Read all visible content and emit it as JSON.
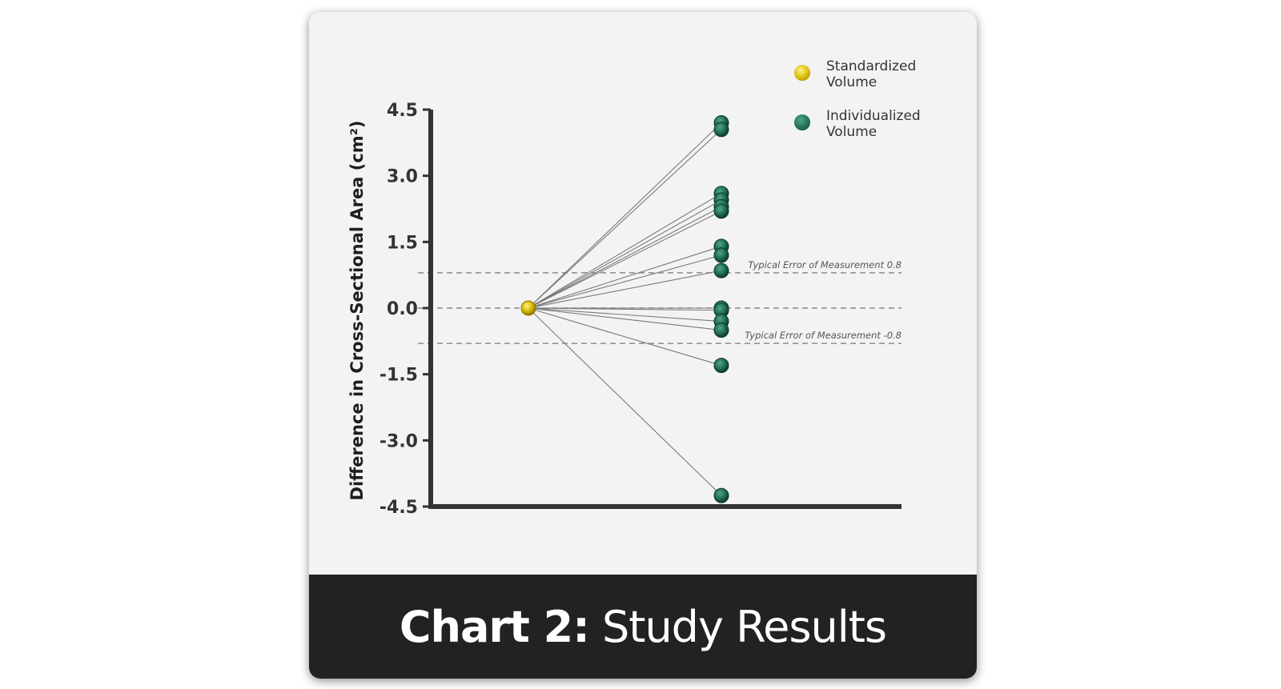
{
  "colors": {
    "standardized": "#d4b400",
    "individualized": "#1f6b4e",
    "axis": "#333333",
    "footer_bg": "#222222"
  },
  "legend": {
    "standardized_line1": "Standardized",
    "standardized_line2": "Volume",
    "individualized_line1": "Individualized",
    "individualized_line2": "Volume"
  },
  "footer": {
    "title_bold": "Chart 2:",
    "title_normal": " Study Results"
  },
  "chart_data": {
    "type": "scatter",
    "ylabel": "Difference in Cross-Sectional Area (cm²)",
    "ylim": [
      -4.5,
      4.5
    ],
    "yticks": [
      "4.5",
      "3.0",
      "1.5",
      "0.0",
      "-1.5",
      "-3.0",
      "-4.5"
    ],
    "grid": false,
    "legend_position": "top-right",
    "reference_lines": [
      {
        "y": 0.8,
        "label": "Typical Error of Measurement 0.8"
      },
      {
        "y": 0.0,
        "label": ""
      },
      {
        "y": -0.8,
        "label": "Typical Error of Measurement -0.8"
      }
    ],
    "series": [
      {
        "name": "Standardized Volume",
        "values": [
          0.0
        ]
      },
      {
        "name": "Individualized Volume",
        "values": [
          4.2,
          4.05,
          2.6,
          2.45,
          2.3,
          2.2,
          1.4,
          1.2,
          0.85,
          0.0,
          -0.05,
          -0.3,
          -0.5,
          -1.3,
          -4.25
        ]
      }
    ]
  }
}
